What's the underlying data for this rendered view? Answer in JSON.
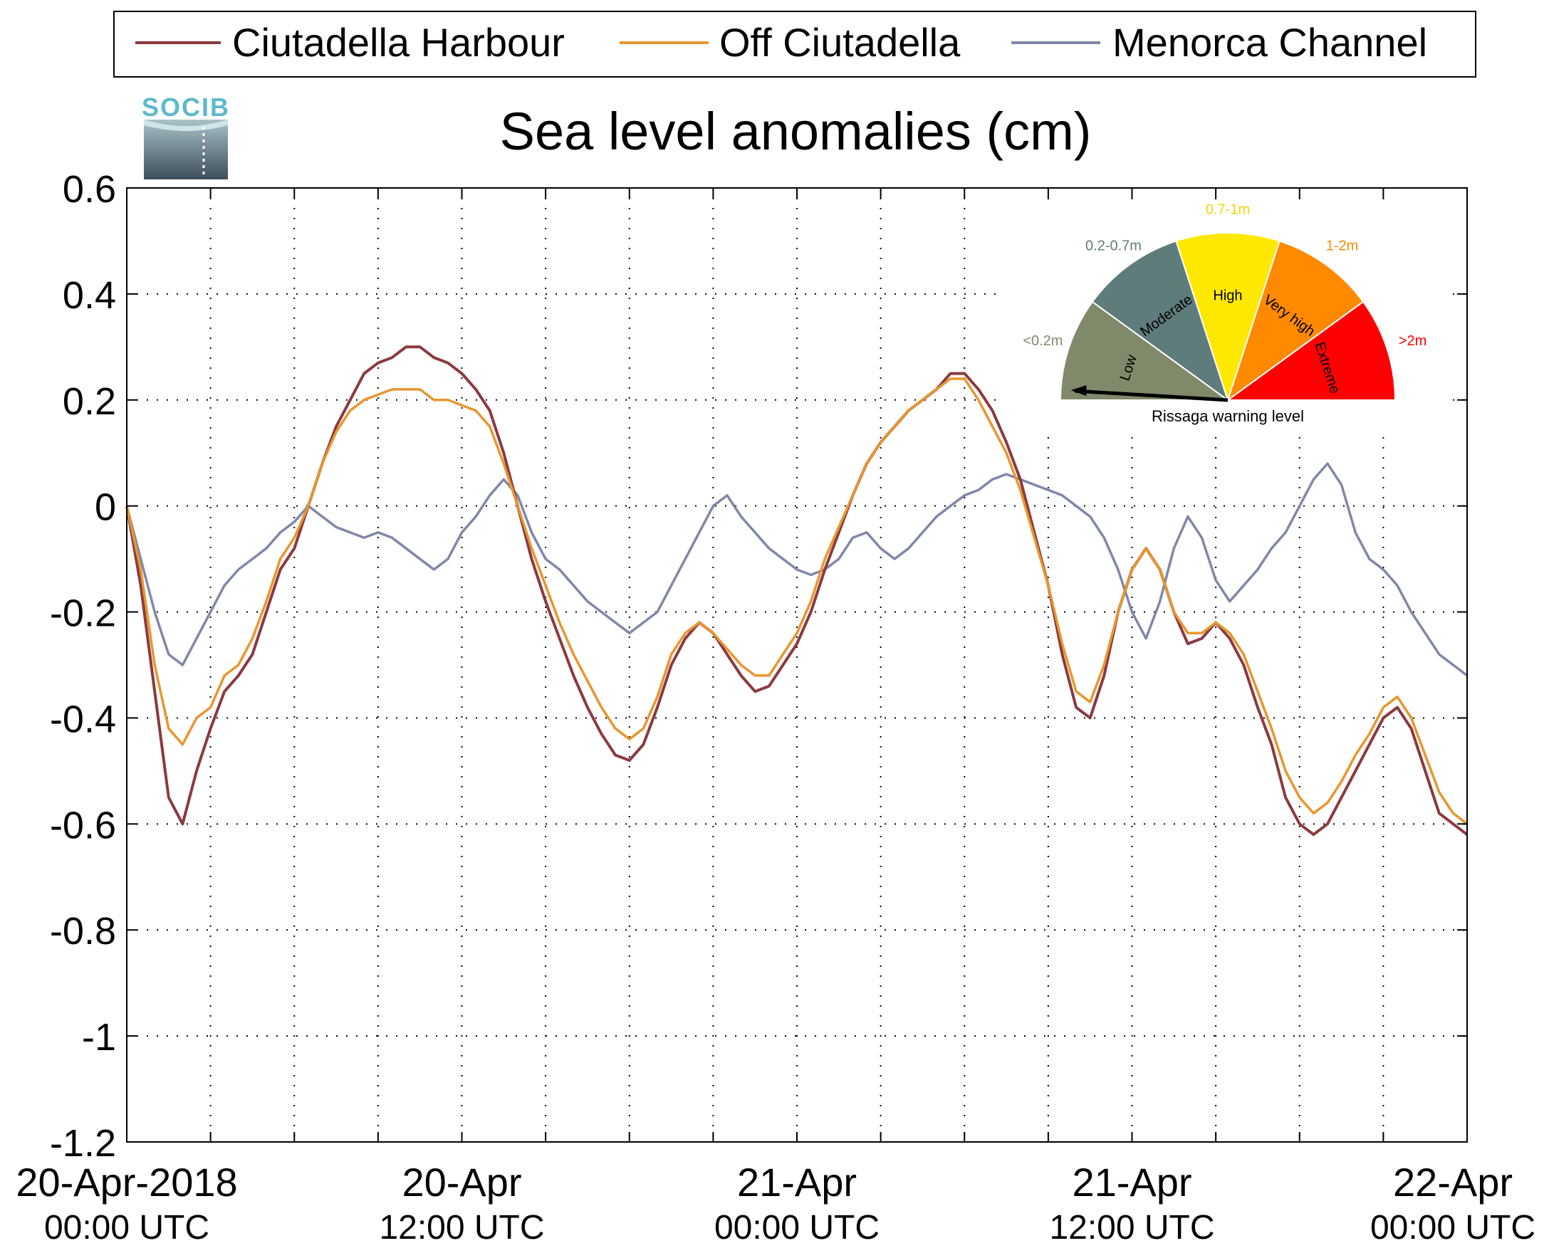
{
  "chart_data": {
    "type": "line",
    "title": "Sea level anomalies (cm)",
    "logo_text": "SOCIB",
    "xlim_hours": [
      0,
      48
    ],
    "ylim": [
      -1.2,
      0.6
    ],
    "yticks": [
      "0.6",
      "0.4",
      "0.2",
      "0",
      "-0.2",
      "-0.4",
      "-0.6",
      "-0.8",
      "-1",
      "-1.2"
    ],
    "ytick_values": [
      0.6,
      0.4,
      0.2,
      0,
      -0.2,
      -0.4,
      -0.6,
      -0.8,
      -1.0,
      -1.2
    ],
    "xticks": [
      {
        "line1": "20-Apr-2018",
        "line2": "00:00 UTC"
      },
      {
        "line1": "20-Apr",
        "line2": "12:00 UTC"
      },
      {
        "line1": "21-Apr",
        "line2": "00:00 UTC"
      },
      {
        "line1": "21-Apr",
        "line2": "12:00 UTC"
      },
      {
        "line1": "22-Apr",
        "line2": "00:00 UTC"
      }
    ],
    "grid": true,
    "legend_position": "top",
    "series": [
      {
        "name": "Ciutadella Harbour",
        "color": "#8b3a3f",
        "x": [
          0,
          0.5,
          1,
          1.5,
          2,
          2.5,
          3,
          3.5,
          4,
          4.5,
          5,
          5.5,
          6,
          6.5,
          7,
          7.5,
          8,
          8.5,
          9,
          9.5,
          10,
          10.5,
          11,
          11.5,
          12,
          12.5,
          13,
          13.5,
          14,
          14.5,
          15,
          15.5,
          16,
          16.5,
          17,
          17.5,
          18,
          18.5,
          19,
          19.5,
          20,
          20.5,
          21,
          21.5,
          22,
          22.5,
          23,
          23.5,
          24,
          24.5,
          25,
          25.5,
          26,
          26.5,
          27,
          27.5,
          28,
          28.5,
          29,
          29.5,
          30,
          30.5,
          31,
          31.5,
          32,
          32.5,
          33,
          33.5,
          34,
          34.5,
          35,
          35.5,
          36,
          36.5,
          37,
          37.5,
          38,
          38.5,
          39,
          39.5,
          40,
          40.5,
          41,
          41.5,
          42,
          42.5,
          43,
          43.5,
          44,
          44.5,
          45,
          45.5,
          46,
          46.5,
          47,
          47.5,
          48
        ],
        "values": [
          0.0,
          -0.15,
          -0.35,
          -0.55,
          -0.6,
          -0.5,
          -0.42,
          -0.35,
          -0.32,
          -0.28,
          -0.2,
          -0.12,
          -0.08,
          0.0,
          0.08,
          0.15,
          0.2,
          0.25,
          0.27,
          0.28,
          0.3,
          0.3,
          0.28,
          0.27,
          0.25,
          0.22,
          0.18,
          0.1,
          0.0,
          -0.1,
          -0.18,
          -0.25,
          -0.32,
          -0.38,
          -0.43,
          -0.47,
          -0.48,
          -0.45,
          -0.38,
          -0.3,
          -0.25,
          -0.22,
          -0.24,
          -0.28,
          -0.32,
          -0.35,
          -0.34,
          -0.3,
          -0.26,
          -0.2,
          -0.12,
          -0.05,
          0.02,
          0.08,
          0.12,
          0.15,
          0.18,
          0.2,
          0.22,
          0.25,
          0.25,
          0.22,
          0.18,
          0.12,
          0.05,
          -0.05,
          -0.15,
          -0.28,
          -0.38,
          -0.4,
          -0.32,
          -0.2,
          -0.12,
          -0.08,
          -0.12,
          -0.2,
          -0.26,
          -0.25,
          -0.22,
          -0.25,
          -0.3,
          -0.38,
          -0.45,
          -0.55,
          -0.6,
          -0.62,
          -0.6,
          -0.55,
          -0.5,
          -0.45,
          -0.4,
          -0.38,
          -0.42,
          -0.5,
          -0.58,
          -0.6,
          -0.62
        ]
      },
      {
        "name": "Off Ciutadella",
        "color": "#e8962e",
        "x": [
          0,
          0.5,
          1,
          1.5,
          2,
          2.5,
          3,
          3.5,
          4,
          4.5,
          5,
          5.5,
          6,
          6.5,
          7,
          7.5,
          8,
          8.5,
          9,
          9.5,
          10,
          10.5,
          11,
          11.5,
          12,
          12.5,
          13,
          13.5,
          14,
          14.5,
          15,
          15.5,
          16,
          16.5,
          17,
          17.5,
          18,
          18.5,
          19,
          19.5,
          20,
          20.5,
          21,
          21.5,
          22,
          22.5,
          23,
          23.5,
          24,
          24.5,
          25,
          25.5,
          26,
          26.5,
          27,
          27.5,
          28,
          28.5,
          29,
          29.5,
          30,
          30.5,
          31,
          31.5,
          32,
          32.5,
          33,
          33.5,
          34,
          34.5,
          35,
          35.5,
          36,
          36.5,
          37,
          37.5,
          38,
          38.5,
          39,
          39.5,
          40,
          40.5,
          41,
          41.5,
          42,
          42.5,
          43,
          43.5,
          44,
          44.5,
          45,
          45.5,
          46,
          46.5,
          47,
          47.5,
          48
        ],
        "values": [
          0.0,
          -0.12,
          -0.3,
          -0.42,
          -0.45,
          -0.4,
          -0.38,
          -0.32,
          -0.3,
          -0.25,
          -0.18,
          -0.1,
          -0.06,
          0.0,
          0.08,
          0.14,
          0.18,
          0.2,
          0.21,
          0.22,
          0.22,
          0.22,
          0.2,
          0.2,
          0.19,
          0.18,
          0.15,
          0.08,
          0.0,
          -0.08,
          -0.15,
          -0.22,
          -0.28,
          -0.33,
          -0.38,
          -0.42,
          -0.44,
          -0.42,
          -0.36,
          -0.28,
          -0.24,
          -0.22,
          -0.24,
          -0.27,
          -0.3,
          -0.32,
          -0.32,
          -0.28,
          -0.24,
          -0.18,
          -0.1,
          -0.04,
          0.02,
          0.08,
          0.12,
          0.15,
          0.18,
          0.2,
          0.22,
          0.24,
          0.24,
          0.2,
          0.15,
          0.1,
          0.03,
          -0.06,
          -0.15,
          -0.26,
          -0.35,
          -0.37,
          -0.3,
          -0.2,
          -0.12,
          -0.08,
          -0.12,
          -0.2,
          -0.24,
          -0.24,
          -0.22,
          -0.24,
          -0.28,
          -0.35,
          -0.42,
          -0.5,
          -0.55,
          -0.58,
          -0.56,
          -0.52,
          -0.47,
          -0.43,
          -0.38,
          -0.36,
          -0.4,
          -0.47,
          -0.54,
          -0.58,
          -0.6
        ]
      },
      {
        "name": "Menorca Channel",
        "color": "#7f88a8",
        "x": [
          0,
          0.5,
          1,
          1.5,
          2,
          2.5,
          3,
          3.5,
          4,
          4.5,
          5,
          5.5,
          6,
          6.5,
          7,
          7.5,
          8,
          8.5,
          9,
          9.5,
          10,
          10.5,
          11,
          11.5,
          12,
          12.5,
          13,
          13.5,
          14,
          14.5,
          15,
          15.5,
          16,
          16.5,
          17,
          17.5,
          18,
          18.5,
          19,
          19.5,
          20,
          20.5,
          21,
          21.5,
          22,
          22.5,
          23,
          23.5,
          24,
          24.5,
          25,
          25.5,
          26,
          26.5,
          27,
          27.5,
          28,
          28.5,
          29,
          29.5,
          30,
          30.5,
          31,
          31.5,
          32,
          32.5,
          33,
          33.5,
          34,
          34.5,
          35,
          35.5,
          36,
          36.5,
          37,
          37.5,
          38,
          38.5,
          39,
          39.5,
          40,
          40.5,
          41,
          41.5,
          42,
          42.5,
          43,
          43.5,
          44,
          44.5,
          45,
          45.5,
          46,
          46.5,
          47,
          47.5,
          48
        ],
        "values": [
          0.0,
          -0.1,
          -0.2,
          -0.28,
          -0.3,
          -0.25,
          -0.2,
          -0.15,
          -0.12,
          -0.1,
          -0.08,
          -0.05,
          -0.03,
          0.0,
          -0.02,
          -0.04,
          -0.05,
          -0.06,
          -0.05,
          -0.06,
          -0.08,
          -0.1,
          -0.12,
          -0.1,
          -0.05,
          -0.02,
          0.02,
          0.05,
          0.02,
          -0.05,
          -0.1,
          -0.12,
          -0.15,
          -0.18,
          -0.2,
          -0.22,
          -0.24,
          -0.22,
          -0.2,
          -0.15,
          -0.1,
          -0.05,
          0.0,
          0.02,
          -0.02,
          -0.05,
          -0.08,
          -0.1,
          -0.12,
          -0.13,
          -0.12,
          -0.1,
          -0.06,
          -0.05,
          -0.08,
          -0.1,
          -0.08,
          -0.05,
          -0.02,
          0.0,
          0.02,
          0.03,
          0.05,
          0.06,
          0.05,
          0.04,
          0.03,
          0.02,
          0.0,
          -0.02,
          -0.06,
          -0.12,
          -0.2,
          -0.25,
          -0.18,
          -0.08,
          -0.02,
          -0.06,
          -0.14,
          -0.18,
          -0.15,
          -0.12,
          -0.08,
          -0.05,
          0.0,
          0.05,
          0.08,
          0.04,
          -0.05,
          -0.1,
          -0.12,
          -0.15,
          -0.2,
          -0.24,
          -0.28,
          -0.3,
          -0.32
        ]
      }
    ],
    "inset": {
      "caption": "Rissaga warning level",
      "sectors": [
        {
          "label": "Low",
          "range": "<0.2m",
          "color": "#808a6a"
        },
        {
          "label": "Moderate",
          "range": "0.2-0.7m",
          "color": "#5f7c7c"
        },
        {
          "label": "High",
          "range": "0.7-1m",
          "color": "#ffe800"
        },
        {
          "label": "Very high",
          "range": "1-2m",
          "color": "#ff8a00"
        },
        {
          "label": "Extreme",
          "range": ">2m",
          "color": "#ff0000"
        }
      ],
      "range_colors": [
        "#808a6a",
        "#5f7c7c",
        "#f2d600",
        "#ff8a00",
        "#ff0000"
      ],
      "needle_level": "Low"
    }
  }
}
